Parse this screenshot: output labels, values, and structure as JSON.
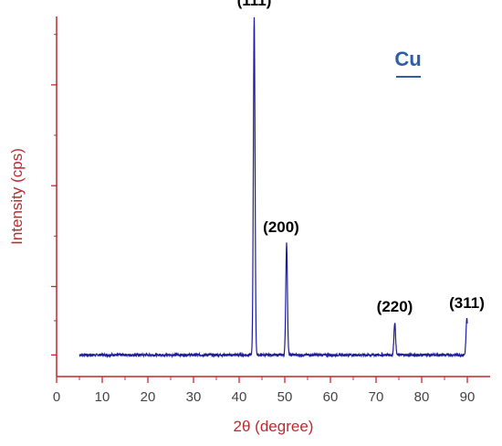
{
  "chart_data": {
    "type": "line",
    "xlabel": "2θ (degree)",
    "ylabel": "Intensity (cps)",
    "xlim": [
      0,
      95
    ],
    "ylim": [
      0,
      100
    ],
    "x_ticks": [
      0,
      10,
      20,
      30,
      40,
      50,
      60,
      70,
      80,
      90
    ],
    "y_ticks": [
      6,
      25,
      53,
      81,
      109
    ],
    "grid": false,
    "legend": {
      "label": "Cu",
      "position": "top-right"
    },
    "colors": {
      "axes": "#c0282d",
      "series": "#1c1c9c",
      "legend": "#2f5ea8"
    },
    "series": [
      {
        "baseline": 6,
        "x_range": [
          5,
          90
        ],
        "peaks": [
          {
            "x": 43.3,
            "y": 100,
            "label": "(111)"
          },
          {
            "x": 50.4,
            "y": 37,
            "label": "(200)"
          },
          {
            "x": 74.1,
            "y": 15,
            "label": "(220)"
          },
          {
            "x": 89.9,
            "y": 16,
            "label": "(311)"
          }
        ]
      }
    ]
  }
}
